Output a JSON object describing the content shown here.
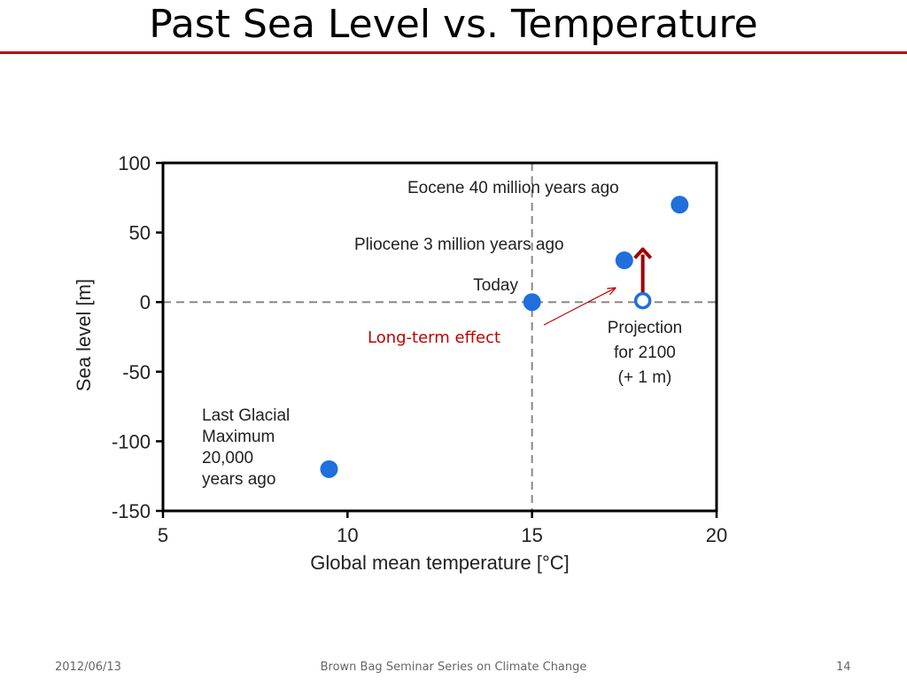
{
  "slide": {
    "title": "Past Sea Level vs. Temperature",
    "footer_date": "2012/06/13",
    "footer_center": "Brown Bag Seminar Series on Climate Change",
    "page_number": "14"
  },
  "chart_data": {
    "type": "scatter",
    "title": "",
    "xlabel": "Global mean temperature [°C]",
    "ylabel": "Sea level [m]",
    "xlim": [
      5,
      20
    ],
    "ylim": [
      -150,
      100
    ],
    "xticks": [
      5,
      10,
      15,
      20
    ],
    "yticks": [
      100,
      50,
      0,
      -50,
      -100,
      -150
    ],
    "reference_lines": {
      "x": 15,
      "y": 0,
      "style": "dashed"
    },
    "grid": false,
    "points": [
      {
        "x": 9.5,
        "y": -120,
        "filled": true,
        "label_lines": [
          "Last Glacial",
          "Maximum",
          "20,000",
          "years ago"
        ]
      },
      {
        "x": 15,
        "y": 0,
        "filled": true,
        "label_lines": [
          "Today"
        ]
      },
      {
        "x": 17.5,
        "y": 30,
        "filled": true,
        "label_lines": [
          "Pliocene 3 million years ago"
        ]
      },
      {
        "x": 19,
        "y": 70,
        "filled": true,
        "label_lines": [
          "Eocene 40 million years ago"
        ]
      },
      {
        "x": 18,
        "y": 1,
        "filled": false,
        "label_lines": [
          "Projection",
          "for 2100",
          "(+ 1 m)"
        ]
      }
    ],
    "annotations": [
      {
        "text": "Long-term effect",
        "color": "#c00000",
        "arrow_to": {
          "x": 17.3,
          "y": 12
        }
      },
      {
        "type": "arrow",
        "color": "#a00000",
        "x": 18,
        "from_y": 1,
        "to_y": 38
      }
    ],
    "colors": {
      "point": "#1f6fdc",
      "annotation": "#c00000"
    }
  }
}
